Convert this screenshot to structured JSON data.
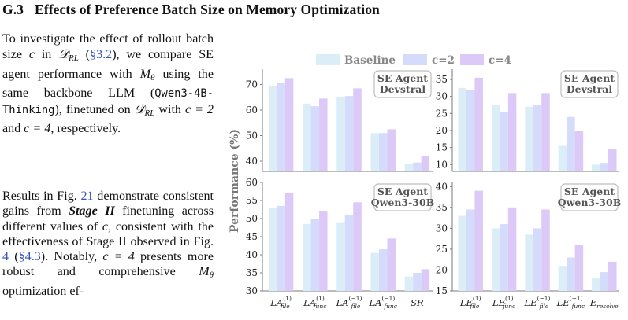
{
  "section": {
    "number": "G.3",
    "title": "Effects of Preference Batch Size on Memory Optimization"
  },
  "para1": {
    "t1": "To investigate the effect of rollout batch size ",
    "c": "c",
    "t2": " in ",
    "D": "𝒟",
    "rl": "RL",
    "t3": " (",
    "sec_ref": "§3.2",
    "t4": "), we compare SE agent performance with ",
    "M": "M",
    "theta": "θ",
    "t5": " using the same backbone LLM (",
    "model": "Qwen3-4B-Thinking",
    "t6": "), finetuned on ",
    "t7": " with ",
    "eq1": "c = 2",
    "t8": " and ",
    "eq2": "c = 4",
    "t9": ", respectively."
  },
  "para2": {
    "t1": "Results in Fig. ",
    "fig_ref": "21",
    "t2": " demonstrate consistent gains from ",
    "stage": "Stage II",
    "t3": " finetuning across different values of ",
    "c": "c",
    "t4": ", consistent with the effectiveness of Stage II observed in Fig. ",
    "fig_ref2": "4",
    "t5": " (",
    "sec_ref": "§4.3",
    "t6": "). Notably, ",
    "eq": "c = 4",
    "t7": " presents more robust and comprehensive ",
    "M": "M",
    "theta": "θ",
    "t8": " optimization ef-"
  },
  "chart_data": [
    {
      "type": "bar",
      "panel_label": [
        "SE Agent",
        "Devstral"
      ],
      "categories": [
        "LA_file^(1)",
        "LA_func^(1)",
        "LA_file^(-1)",
        "LA_func^(-1)",
        "SR"
      ],
      "series": [
        {
          "name": "Baseline",
          "values": [
            69.5,
            62.5,
            65.0,
            51.0,
            39.0
          ]
        },
        {
          "name": "c=2",
          "values": [
            70.5,
            61.5,
            65.5,
            51.0,
            39.5
          ]
        },
        {
          "name": "c=4",
          "values": [
            72.5,
            64.5,
            68.5,
            52.5,
            42.0
          ]
        }
      ],
      "ylim": [
        36,
        76
      ],
      "yticks": [
        40,
        50,
        60,
        70
      ]
    },
    {
      "type": "bar",
      "panel_label": [
        "SE Agent",
        "Devstral"
      ],
      "categories": [
        "LE_file^(1)",
        "LE_func^(1)",
        "LE_file^(-1)",
        "LE_func^(-1)",
        "E_resolve"
      ],
      "series": [
        {
          "name": "Baseline",
          "values": [
            32.5,
            27.5,
            27.0,
            15.5,
            10.0
          ]
        },
        {
          "name": "c=2",
          "values": [
            32.0,
            25.5,
            27.5,
            24.0,
            10.5
          ]
        },
        {
          "name": "c=4",
          "values": [
            35.5,
            31.0,
            31.0,
            20.0,
            14.5
          ]
        }
      ],
      "ylim": [
        8,
        38
      ],
      "yticks": [
        10,
        15,
        20,
        25,
        30,
        35
      ]
    },
    {
      "type": "bar",
      "panel_label": [
        "SE Agent",
        "Qwen3-30B"
      ],
      "categories": [
        "LA_file^(1)",
        "LA_func^(1)",
        "LA_file^(-1)",
        "LA_func^(-1)",
        "SR"
      ],
      "series": [
        {
          "name": "Baseline",
          "values": [
            53.0,
            48.5,
            49.0,
            40.5,
            34.0
          ]
        },
        {
          "name": "c=2",
          "values": [
            53.5,
            50.0,
            51.0,
            41.5,
            35.0
          ]
        },
        {
          "name": "c=4",
          "values": [
            57.0,
            52.0,
            54.5,
            44.5,
            36.0
          ]
        }
      ],
      "ylim": [
        30,
        60
      ],
      "yticks": [
        30,
        35,
        40,
        45,
        50,
        55,
        60
      ]
    },
    {
      "type": "bar",
      "panel_label": [
        "SE Agent",
        "Qwen3-30B"
      ],
      "categories": [
        "LE_file^(1)",
        "LE_func^(1)",
        "LE_file^(-1)",
        "LE_func^(-1)",
        "E_resolve"
      ],
      "series": [
        {
          "name": "Baseline",
          "values": [
            33.0,
            30.0,
            28.5,
            21.0,
            18.0
          ]
        },
        {
          "name": "c=2",
          "values": [
            34.5,
            31.0,
            30.0,
            23.0,
            19.5
          ]
        },
        {
          "name": "c=4",
          "values": [
            39.0,
            35.0,
            34.5,
            26.0,
            22.0
          ]
        }
      ],
      "ylim": [
        15,
        41
      ],
      "yticks": [
        15,
        20,
        25,
        30,
        35,
        40
      ]
    }
  ],
  "figure": {
    "legend": [
      "Baseline",
      "c=2",
      "c=4"
    ],
    "ylabel": "Performance (%)",
    "colors": [
      "#dbeef8",
      "#d5dbfb",
      "#dcc9f7"
    ],
    "xtick_labels_left": [
      {
        "base": "LA",
        "sub": "file",
        "sup": "(1)"
      },
      {
        "base": "LA",
        "sub": "func",
        "sup": "(1)"
      },
      {
        "base": "LA",
        "sub": "file",
        "sup": "(−1)"
      },
      {
        "base": "LA",
        "sub": "func",
        "sup": "(−1)"
      },
      {
        "base": "SR",
        "sub": "",
        "sup": ""
      }
    ],
    "xtick_labels_right": [
      {
        "base": "LE",
        "sub": "file",
        "sup": "(1)"
      },
      {
        "base": "LE",
        "sub": "func",
        "sup": "(1)"
      },
      {
        "base": "LE",
        "sub": "file",
        "sup": "(−1)"
      },
      {
        "base": "LE",
        "sub": "func",
        "sup": "(−1)"
      },
      {
        "base": "E",
        "sub": "resolve",
        "sup": ""
      }
    ]
  }
}
